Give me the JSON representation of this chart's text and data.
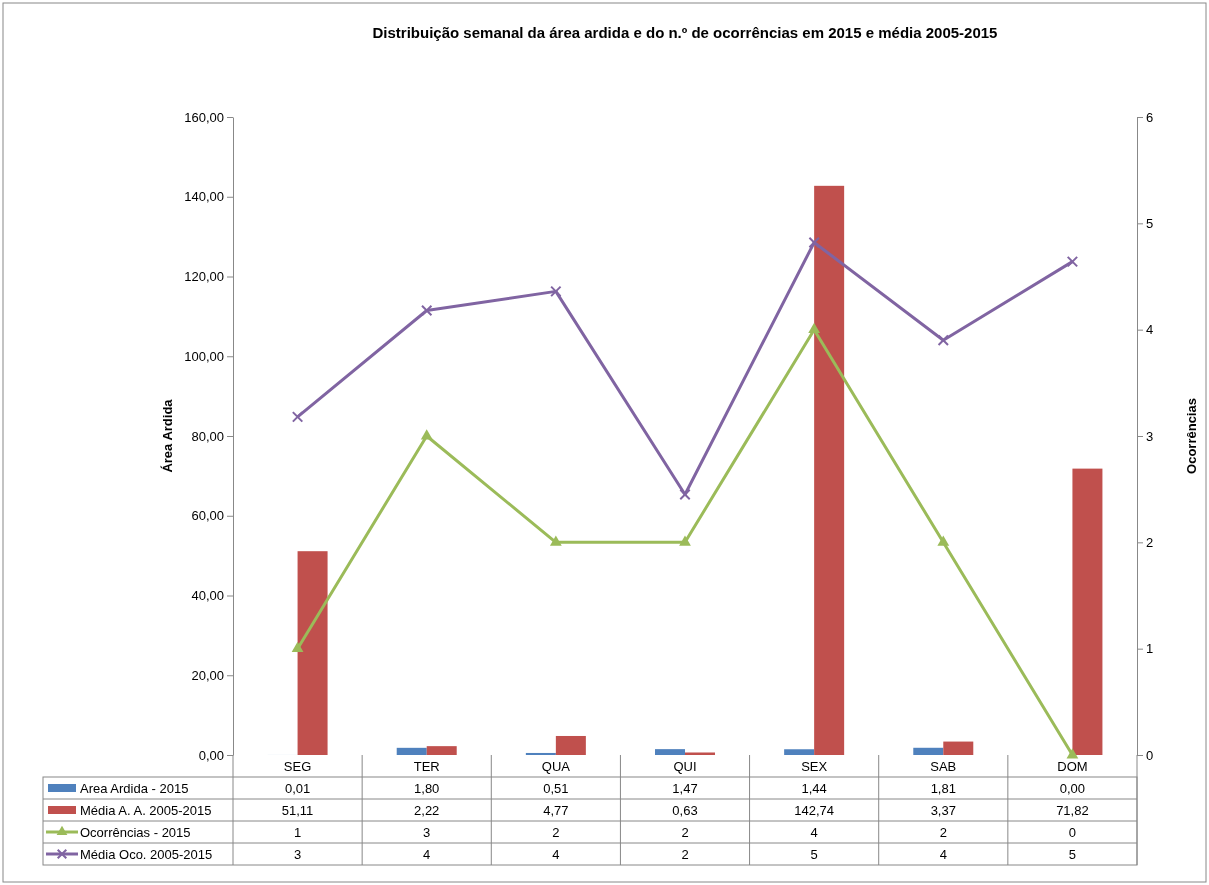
{
  "chart_data": {
    "type": "bar",
    "title": "Distribuição semanal da área ardida e do n.º de ocorrências em 2015 e média 2005-2015",
    "ylabel": "Área Ardida",
    "y2label": "Ocorrências",
    "categories": [
      "SEG",
      "TER",
      "QUA",
      "QUI",
      "SEX",
      "SAB",
      "DOM"
    ],
    "series": [
      {
        "name": "Area Ardida - 2015",
        "color": "#4f81bd",
        "values": [
          0.01,
          1.8,
          0.51,
          1.47,
          1.44,
          1.81,
          0.0
        ],
        "value_labels": [
          "0,01",
          "1,80",
          "0,51",
          "1,47",
          "1,44",
          "1,81",
          "0,00"
        ]
      },
      {
        "name": "Média A. A. 2005-2015",
        "color": "#c0504d",
        "values": [
          51.11,
          2.22,
          4.77,
          0.63,
          142.74,
          3.37,
          71.82
        ],
        "value_labels": [
          "51,11",
          "2,22",
          "4,77",
          "0,63",
          "142,74",
          "3,37",
          "71,82"
        ]
      },
      {
        "name": "Ocorrências - 2015",
        "type": "line",
        "axis": "y2",
        "marker": "triangle",
        "color": "#9bbb59",
        "values": [
          1,
          3,
          2,
          2,
          4,
          2,
          0
        ],
        "value_labels": [
          "1",
          "3",
          "2",
          "2",
          "4",
          "2",
          "0"
        ]
      },
      {
        "name": "Média Oco. 2005-2015",
        "type": "line",
        "axis": "y2",
        "marker": "cross",
        "color": "#8064a2",
        "values": [
          3.18,
          4.18,
          4.36,
          2.45,
          4.82,
          3.9,
          4.64
        ],
        "value_labels": [
          "3",
          "4",
          "4",
          "2",
          "5",
          "4",
          "5"
        ]
      }
    ],
    "ylim": [
      0,
      160
    ],
    "yticks": [
      {
        "value": 0,
        "label": "0,00"
      },
      {
        "value": 20,
        "label": "20,00"
      },
      {
        "value": 40,
        "label": "40,00"
      },
      {
        "value": 60,
        "label": "60,00"
      },
      {
        "value": 80,
        "label": "80,00"
      },
      {
        "value": 100,
        "label": "100,00"
      },
      {
        "value": 120,
        "label": "120,00"
      },
      {
        "value": 140,
        "label": "140,00"
      },
      {
        "value": 160,
        "label": "160,00"
      }
    ],
    "y2lim": [
      0,
      6
    ],
    "y2ticks": [
      0,
      1,
      2,
      3,
      4,
      5,
      6
    ],
    "grid": false,
    "legend": "bottom",
    "line_style": "solid"
  }
}
